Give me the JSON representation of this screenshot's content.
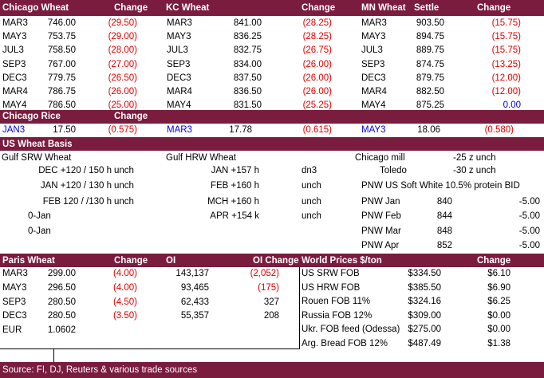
{
  "futures": {
    "header": [
      "Chicago Wheat",
      "Change",
      "KC Wheat",
      "Change",
      "MN Wheat",
      "Settle",
      "Change"
    ],
    "rows": [
      [
        "MAR3",
        "746.00",
        "(29.50)",
        "MAR3",
        "841.00",
        "(28.25)",
        "MAR3",
        "903.50",
        "(15.75)"
      ],
      [
        "MAY3",
        "753.75",
        "(29.00)",
        "MAY3",
        "836.25",
        "(28.25)",
        "MAY3",
        "894.75",
        "(15.75)"
      ],
      [
        "JUL3",
        "758.50",
        "(28.00)",
        "JUL3",
        "832.75",
        "(26.75)",
        "JUL3",
        "889.75",
        "(15.75)"
      ],
      [
        "SEP3",
        "767.00",
        "(27.00)",
        "SEP3",
        "834.00",
        "(26.00)",
        "SEP3",
        "874.75",
        "(13.25)"
      ],
      [
        "DEC3",
        "779.75",
        "(26.50)",
        "DEC3",
        "837.50",
        "(26.00)",
        "DEC3",
        "879.75",
        "(12.00)"
      ],
      [
        "MAR4",
        "786.75",
        "(26.00)",
        "MAR4",
        "836.50",
        "(26.00)",
        "MAR4",
        "882.50",
        "(12.00)"
      ],
      [
        "MAY4",
        "786.50",
        "(25.00)",
        "MAY4",
        "831.50",
        "(25.25)",
        "MAY4",
        "875.25",
        "0.00"
      ]
    ]
  },
  "rice": {
    "header": [
      "Chicago Rice",
      "Change"
    ],
    "row": [
      "JAN3",
      "17.50",
      "(0.575)",
      "MAR3",
      "17.78",
      "(0.615)",
      "MAY3",
      "18.06",
      "(0.580)"
    ]
  },
  "basis": {
    "title": "US Wheat Basis",
    "gulf_srw": {
      "title": "Gulf SRW Wheat",
      "rows": [
        [
          "DEC +120 / 150 h",
          "unch"
        ],
        [
          "JAN +120 / 130 h",
          "unch"
        ],
        [
          "FEB 120 / /130 h",
          "unch"
        ]
      ],
      "extra": [
        "0-Jan",
        "0-Jan"
      ]
    },
    "gulf_hrw": {
      "title": "Gulf HRW Wheat",
      "rows": [
        [
          "JAN +157 h",
          "dn3"
        ],
        [
          "FEB +160 h",
          "unch"
        ],
        [
          "MCH +160 h",
          "unch"
        ],
        [
          "APR +154 k",
          "unch"
        ]
      ]
    },
    "mills": [
      [
        "Chicago mill",
        "-25 z unch"
      ],
      [
        "Toledo",
        "-30 z unch"
      ]
    ],
    "pnw_title": "PNW US Soft White 10.5% protein BID",
    "pnw": [
      [
        "PNW Jan",
        "840",
        "-5.00"
      ],
      [
        "PNW Feb",
        "844",
        "-5.00"
      ],
      [
        "PNW Mar",
        "848",
        "-5.00"
      ],
      [
        "PNW Apr",
        "852",
        "-5.00"
      ]
    ]
  },
  "paris": {
    "header": [
      "Paris Wheat",
      "Change",
      "OI",
      "OI Change"
    ],
    "rows": [
      [
        "MAR3",
        "299.00",
        "(4.00)",
        "143,137",
        "(2,052)"
      ],
      [
        "MAY3",
        "296.50",
        "(4.00)",
        "93,465",
        "(175)"
      ],
      [
        "SEP3",
        "280.50",
        "(4.50)",
        "62,433",
        "327"
      ],
      [
        "DEC3",
        "280.50",
        "(3.50)",
        "55,357",
        "208"
      ]
    ],
    "eur": [
      "EUR",
      "1.0602"
    ]
  },
  "world": {
    "header": [
      "World Prices $/ton",
      "Change"
    ],
    "rows": [
      [
        "US SRW FOB",
        "$334.50",
        "$6.10"
      ],
      [
        "US HRW FOB",
        "$385.50",
        "$6.90"
      ],
      [
        "Rouen FOB 11%",
        "$324.16",
        "$6.25"
      ],
      [
        "Russia FOB 12%",
        "$309.00",
        "$0.00"
      ],
      [
        "Ukr. FOB feed (Odessa)",
        "$275.00",
        "$0.00"
      ],
      [
        "Arg. Bread FOB 12%",
        "$487.49",
        "$1.38"
      ]
    ]
  },
  "source": "Source: FI, DJ, Reuters & various trade sources"
}
